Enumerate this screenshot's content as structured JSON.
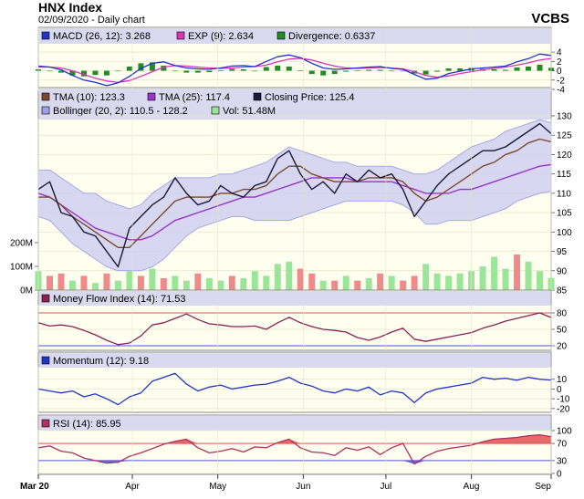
{
  "header": {
    "title": "HNX Index",
    "subtitle": "02/09/2020 - Daily chart",
    "brand": "VCBS"
  },
  "colors": {
    "panel_bg": "#fffff0",
    "legend_bg": "#d9d9f0",
    "band_fill": "#c9c9f2",
    "price_line": "#1a1a3a",
    "tma10": "#7b4a2e",
    "tma25": "#9933cc",
    "volume_up": "#99e699",
    "volume_down": "#f08a8a",
    "mfi_line": "#8b2252",
    "momentum_line": "#2233cc",
    "rsi_line": "#b03060",
    "macd_line": "#2233cc",
    "signal_line": "#dd33bb",
    "divergence": "#228b22",
    "overbought": "#e05050",
    "oversold": "#5050e0"
  },
  "chart_data": [
    {
      "type": "line",
      "name": "macd",
      "legend": [
        {
          "label": "MACD (26, 12): 3.268",
          "color": "#2233cc"
        },
        {
          "label": "EXP (9): 2.634",
          "color": "#dd33bb"
        },
        {
          "label": "Divergence: 0.6337",
          "color": "#228b22"
        }
      ],
      "yticks": [
        4,
        2,
        0,
        -2,
        -4
      ],
      "ylim": [
        -4,
        5
      ],
      "x": [
        0,
        4,
        8,
        12,
        16,
        20,
        24,
        28,
        32,
        36,
        40,
        44,
        48,
        52,
        56,
        60,
        64,
        68,
        72,
        76,
        80,
        84,
        88,
        92,
        96,
        100,
        104,
        108,
        112,
        116,
        120,
        124,
        128,
        132,
        136,
        140,
        144,
        148,
        152,
        156,
        160,
        164,
        168,
        172,
        176,
        180
      ],
      "macd": [
        1,
        0.8,
        0.2,
        -1,
        -2,
        -2.5,
        -3.2,
        -2.6,
        -1.2,
        0.5,
        1.6,
        1.9,
        1.1,
        0.6,
        0.4,
        0.3,
        0.6,
        1.0,
        1.1,
        0.9,
        2.0,
        3.0,
        3.4,
        2.8,
        1.6,
        0.6,
        0.3,
        0.4,
        0.6,
        0.8,
        0.9,
        0.5,
        0.3,
        -0.8,
        -1.8,
        -1.6,
        -0.6,
        -0.1,
        0.4,
        0.6,
        0.8,
        1.0,
        1.9,
        2.6,
        3.6,
        3.27
      ],
      "signal": [
        0.8,
        0.8,
        0.6,
        0.0,
        -0.8,
        -1.6,
        -2.2,
        -2.5,
        -2.1,
        -1.2,
        -0.2,
        0.8,
        1.1,
        1.0,
        0.8,
        0.6,
        0.5,
        0.6,
        0.8,
        0.9,
        1.2,
        1.9,
        2.5,
        2.7,
        2.3,
        1.6,
        1.0,
        0.6,
        0.5,
        0.6,
        0.7,
        0.6,
        0.4,
        -0.2,
        -1.0,
        -1.4,
        -1.1,
        -0.6,
        -0.2,
        0.2,
        0.5,
        0.8,
        1.2,
        1.7,
        2.3,
        2.63
      ],
      "divergence": [
        0.3,
        0.0,
        -0.4,
        -1.0,
        -1.2,
        -0.9,
        -1.0,
        -0.1,
        0.9,
        1.6,
        1.8,
        1.1,
        0.0,
        -0.4,
        -0.4,
        -0.3,
        0.1,
        0.4,
        0.3,
        0.0,
        0.8,
        1.1,
        0.9,
        0.1,
        -0.7,
        -1.0,
        -0.7,
        -0.2,
        0.1,
        0.2,
        0.2,
        -0.1,
        -0.1,
        -0.6,
        -0.8,
        -0.2,
        0.5,
        0.5,
        0.6,
        0.4,
        0.3,
        0.2,
        0.7,
        0.9,
        1.3,
        0.63
      ]
    },
    {
      "type": "line",
      "name": "price",
      "legend": [
        {
          "label": "TMA (10): 123.3",
          "color": "#7b4a2e"
        },
        {
          "label": "TMA (25): 117.4",
          "color": "#9933cc"
        },
        {
          "label": "Closing Price: 125.4",
          "color": "#1a1a3a"
        },
        {
          "label": "Bollinger (20, 2): 110.5 - 128.2",
          "color": "#a0a0e8"
        },
        {
          "label": "Vol: 51.48M",
          "color": "#99e699"
        }
      ],
      "yticks": [
        130,
        125,
        120,
        115,
        110,
        105,
        100,
        95,
        90,
        85
      ],
      "ylim": [
        85,
        130
      ],
      "volume_ticks": [
        "200M",
        "100M",
        "0M"
      ],
      "volume_tick_values": [
        200,
        100,
        0
      ],
      "volume_max": 300,
      "x": [
        0,
        4,
        8,
        12,
        16,
        20,
        24,
        28,
        32,
        36,
        40,
        44,
        48,
        52,
        56,
        60,
        64,
        68,
        72,
        76,
        80,
        84,
        88,
        92,
        96,
        100,
        104,
        108,
        112,
        116,
        120,
        124,
        128,
        132,
        136,
        140,
        144,
        148,
        152,
        156,
        160,
        164,
        168,
        172,
        176,
        180
      ],
      "close": [
        111,
        113,
        105,
        104,
        100,
        99,
        95,
        91,
        101,
        104,
        107,
        109,
        114,
        110,
        107,
        108,
        112,
        110,
        109,
        112,
        113,
        119,
        121,
        115,
        111,
        113,
        110,
        115,
        113,
        116,
        114,
        115,
        111,
        104,
        108,
        112,
        115,
        117,
        119,
        121,
        121,
        122,
        124,
        126,
        128,
        125.4
      ],
      "tma10": [
        109,
        109,
        107,
        104,
        102,
        100,
        98,
        96,
        96,
        99,
        102,
        105,
        108,
        109,
        109,
        109,
        110,
        110,
        111,
        111,
        112,
        115,
        117,
        117,
        115,
        114,
        113,
        113,
        113,
        114,
        114,
        114,
        113,
        110,
        108,
        109,
        111,
        113,
        115,
        117,
        118,
        120,
        121,
        123,
        124,
        123.3
      ],
      "tma25": [
        110,
        109,
        107,
        105,
        103,
        101,
        100,
        99,
        98,
        98,
        99,
        101,
        103,
        104,
        105,
        106,
        107,
        108,
        109,
        109,
        110,
        111,
        112,
        113,
        114,
        114,
        114,
        114,
        113,
        113,
        113,
        113,
        112,
        111,
        110,
        110,
        110,
        111,
        111,
        112,
        113,
        114,
        115,
        116,
        117,
        117.4
      ],
      "boll_upper": [
        116,
        116,
        114,
        112,
        110,
        110,
        108,
        107,
        106,
        107,
        110,
        112,
        114,
        114,
        114,
        114,
        115,
        115,
        116,
        117,
        118,
        120,
        122,
        121,
        120,
        119,
        118,
        118,
        117,
        117,
        117,
        117,
        116,
        115,
        115,
        116,
        118,
        120,
        122,
        123,
        124,
        126,
        127,
        128,
        129,
        128.2
      ],
      "boll_lower": [
        104,
        103,
        100,
        97,
        95,
        93,
        91,
        90,
        90,
        90,
        91,
        93,
        96,
        99,
        101,
        102,
        103,
        104,
        104,
        103,
        103,
        103,
        103,
        104,
        105,
        106,
        107,
        108,
        108,
        108,
        108,
        108,
        107,
        105,
        102,
        102,
        103,
        103,
        103,
        104,
        105,
        106,
        108,
        109,
        110,
        110.5
      ],
      "volume": [
        80,
        60,
        70,
        40,
        60,
        30,
        70,
        40,
        80,
        60,
        90,
        50,
        60,
        40,
        70,
        50,
        40,
        60,
        50,
        80,
        60,
        110,
        120,
        90,
        70,
        40,
        40,
        60,
        40,
        50,
        70,
        60,
        40,
        60,
        110,
        70,
        60,
        70,
        80,
        100,
        140,
        90,
        150,
        120,
        80,
        51.48
      ],
      "volume_up": [
        true,
        false,
        false,
        true,
        false,
        true,
        false,
        true,
        true,
        false,
        true,
        false,
        true,
        true,
        false,
        true,
        true,
        false,
        true,
        true,
        true,
        true,
        true,
        false,
        false,
        true,
        false,
        true,
        false,
        true,
        false,
        true,
        false,
        false,
        true,
        true,
        true,
        true,
        true,
        true,
        true,
        true,
        false,
        true,
        true,
        true
      ]
    },
    {
      "type": "line",
      "name": "mfi",
      "legend": [
        {
          "label": "Money Flow Index (14): 71.53",
          "color": "#8b2252"
        }
      ],
      "yticks": [
        80,
        50,
        20
      ],
      "ylim": [
        15,
        90
      ],
      "x": [
        0,
        4,
        8,
        12,
        16,
        20,
        24,
        28,
        32,
        36,
        40,
        44,
        48,
        52,
        56,
        60,
        64,
        68,
        72,
        76,
        80,
        84,
        88,
        92,
        96,
        100,
        104,
        108,
        112,
        116,
        120,
        124,
        128,
        132,
        136,
        140,
        144,
        148,
        152,
        156,
        160,
        164,
        168,
        172,
        176,
        180
      ],
      "values": [
        62,
        56,
        58,
        55,
        48,
        40,
        30,
        22,
        25,
        38,
        58,
        62,
        70,
        78,
        68,
        60,
        58,
        55,
        55,
        56,
        50,
        62,
        72,
        62,
        55,
        50,
        48,
        45,
        35,
        30,
        36,
        45,
        52,
        32,
        28,
        32,
        36,
        40,
        44,
        52,
        58,
        65,
        70,
        75,
        80,
        71.53
      ]
    },
    {
      "type": "line",
      "name": "momentum",
      "legend": [
        {
          "label": "Momentum (12): 9.18",
          "color": "#2233cc"
        }
      ],
      "yticks": [
        10,
        0,
        -10,
        -20
      ],
      "ylim": [
        -22,
        20
      ],
      "x": [
        0,
        4,
        8,
        12,
        16,
        20,
        24,
        28,
        32,
        36,
        40,
        44,
        48,
        52,
        56,
        60,
        64,
        68,
        72,
        76,
        80,
        84,
        88,
        92,
        96,
        100,
        104,
        108,
        112,
        116,
        120,
        124,
        128,
        132,
        136,
        140,
        144,
        148,
        152,
        156,
        160,
        164,
        168,
        172,
        176,
        180
      ],
      "values": [
        0,
        -2,
        -4,
        -2,
        -8,
        -5,
        -10,
        -16,
        -8,
        -4,
        8,
        12,
        16,
        5,
        -2,
        2,
        4,
        0,
        2,
        4,
        5,
        8,
        12,
        6,
        3,
        -2,
        -4,
        0,
        -2,
        2,
        -6,
        -2,
        -4,
        -14,
        -4,
        0,
        2,
        4,
        6,
        12,
        10,
        11,
        9,
        12,
        10,
        9.18
      ]
    },
    {
      "type": "area",
      "name": "rsi",
      "legend": [
        {
          "label": "RSI (14): 85.95",
          "color": "#b03060"
        }
      ],
      "yticks": [
        100,
        70,
        30,
        0
      ],
      "ylim": [
        0,
        100
      ],
      "overbought": 70,
      "oversold": 30,
      "x": [
        0,
        4,
        8,
        12,
        16,
        20,
        24,
        28,
        32,
        36,
        40,
        44,
        48,
        52,
        56,
        60,
        64,
        68,
        72,
        76,
        80,
        84,
        88,
        92,
        96,
        100,
        104,
        108,
        112,
        116,
        120,
        124,
        128,
        132,
        136,
        140,
        144,
        148,
        152,
        156,
        160,
        164,
        168,
        172,
        176,
        180
      ],
      "values": [
        60,
        64,
        52,
        48,
        36,
        30,
        24,
        26,
        40,
        48,
        58,
        68,
        75,
        80,
        60,
        48,
        52,
        58,
        50,
        62,
        60,
        72,
        80,
        60,
        50,
        48,
        42,
        60,
        54,
        62,
        44,
        60,
        70,
        22,
        40,
        52,
        58,
        62,
        66,
        74,
        80,
        82,
        84,
        88,
        90,
        85.95
      ]
    }
  ],
  "x_axis": {
    "labels": [
      "Mar 20",
      "Apr",
      "May",
      "Jun",
      "Jul",
      "Aug",
      "Sep"
    ],
    "positions": [
      0,
      33,
      63,
      93,
      122,
      152,
      180
    ]
  }
}
